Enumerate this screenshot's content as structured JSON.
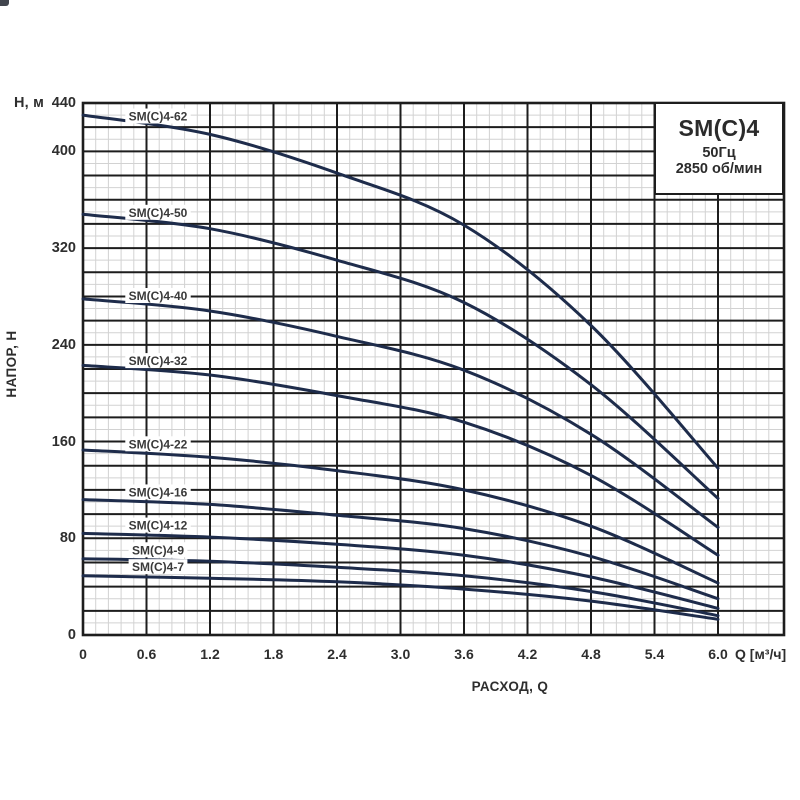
{
  "legend": {
    "model": "SM(C)4",
    "frequency": "50Гц",
    "speed": "2850 об/мин"
  },
  "y_axis": {
    "unit_label": "Н, м",
    "axis_title": "НАПОР, Н",
    "tick_values": [
      440,
      400,
      320,
      240,
      160,
      80,
      0
    ],
    "range": [
      0,
      440
    ],
    "major_step": 20,
    "minor_step": 10
  },
  "x_axis": {
    "axis_title": "РАСХОД, Q",
    "unit_label": "Q [м³/ч]",
    "tick_labels": [
      "0",
      "0.6",
      "1.2",
      "1.8",
      "2.4",
      "3.0",
      "3.6",
      "4.2",
      "4.8",
      "5.4",
      "6.0"
    ],
    "range_data": [
      0,
      6.0
    ],
    "range_plot": [
      0,
      6.63
    ],
    "major_step": 0.6,
    "minor_step": 0.12
  },
  "chart_data": {
    "type": "line",
    "title": "SM(C)4 50Гц 2850 об/мин",
    "xlabel": "РАСХОД, Q [м³/ч]",
    "ylabel": "НАПОР, Н [м]",
    "xlim": [
      0,
      6.63
    ],
    "ylim": [
      0,
      440
    ],
    "grid": true,
    "legend_position": "top-right",
    "x": [
      0,
      1.2,
      2.4,
      3.6,
      4.8,
      6.0
    ],
    "series": [
      {
        "name": "SM(C)4-62",
        "values": [
          430,
          414,
          382,
          339,
          256,
          138
        ]
      },
      {
        "name": "SM(C)4-50",
        "values": [
          348,
          336,
          310,
          275,
          207,
          113
        ]
      },
      {
        "name": "SM(C)4-40",
        "values": [
          278,
          268,
          247,
          219,
          166,
          89
        ]
      },
      {
        "name": "SM(C)4-32",
        "values": [
          223,
          215,
          198,
          176,
          132,
          66
        ]
      },
      {
        "name": "SM(C)4-22",
        "values": [
          153,
          147,
          136,
          120,
          90,
          43
        ]
      },
      {
        "name": "SM(C)4-16",
        "values": [
          112,
          108,
          99,
          88,
          65,
          30
        ]
      },
      {
        "name": "SM(C)4-12",
        "values": [
          84,
          81,
          75,
          66,
          48,
          22
        ]
      },
      {
        "name": "SM(C)4-9",
        "values": [
          63,
          61,
          56,
          49,
          36,
          16
        ]
      },
      {
        "name": "SM(C)4-7",
        "values": [
          49,
          47,
          44,
          38,
          28,
          13
        ]
      }
    ]
  },
  "colors": {
    "curve": "#1e2c4b",
    "grid_major": "#1d1d1d",
    "grid_minor": "#d2d2d2",
    "text": "#3a3a3a",
    "label_text": "#3a3a3a",
    "background": "#ffffff"
  }
}
